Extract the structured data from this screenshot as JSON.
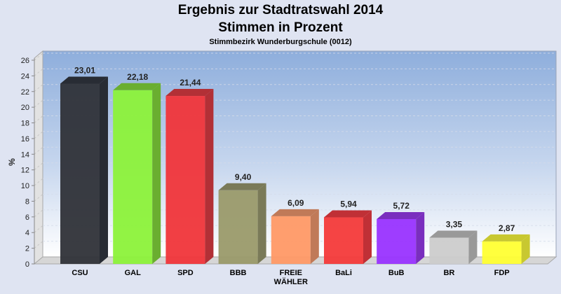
{
  "chart_data": {
    "type": "bar",
    "title": "Ergebnis zur Stadtratswahl 2014",
    "subtitle": "Stimmen in Prozent",
    "subtitle2": "Stimmbezirk Wunderburgschule (0012)",
    "xlabel": "",
    "ylabel": "%",
    "ylim": [
      0,
      26
    ],
    "yticks": [
      "0",
      "2",
      "4",
      "6",
      "8",
      "10",
      "12",
      "14",
      "16",
      "18",
      "20",
      "22",
      "24",
      "26"
    ],
    "grid": true,
    "categories": [
      [
        "CSU"
      ],
      [
        "GAL"
      ],
      [
        "SPD"
      ],
      [
        "BBB"
      ],
      [
        "FREIE",
        "WÄHLER"
      ],
      [
        "BaLi"
      ],
      [
        "BuB"
      ],
      [
        "BR"
      ],
      [
        "FDP"
      ]
    ],
    "values": [
      23.01,
      22.18,
      21.44,
      9.4,
      6.09,
      5.94,
      5.72,
      3.35,
      2.87
    ],
    "value_labels": [
      "23,01",
      "22,18",
      "21,44",
      "9,40",
      "6,09",
      "5,94",
      "5,72",
      "3,35",
      "2,87"
    ],
    "colors": [
      "#2f3238",
      "#8cf23a",
      "#f0353a",
      "#9a9a6a",
      "#ff9966",
      "#f43a3a",
      "#9933ff",
      "#cccccc",
      "#ffff33"
    ],
    "side_colors": [
      "#282c34",
      "#6aae30",
      "#b23036",
      "#7a7a58",
      "#c07a58",
      "#c03036",
      "#7a2ebe",
      "#999999",
      "#c8c830"
    ]
  }
}
